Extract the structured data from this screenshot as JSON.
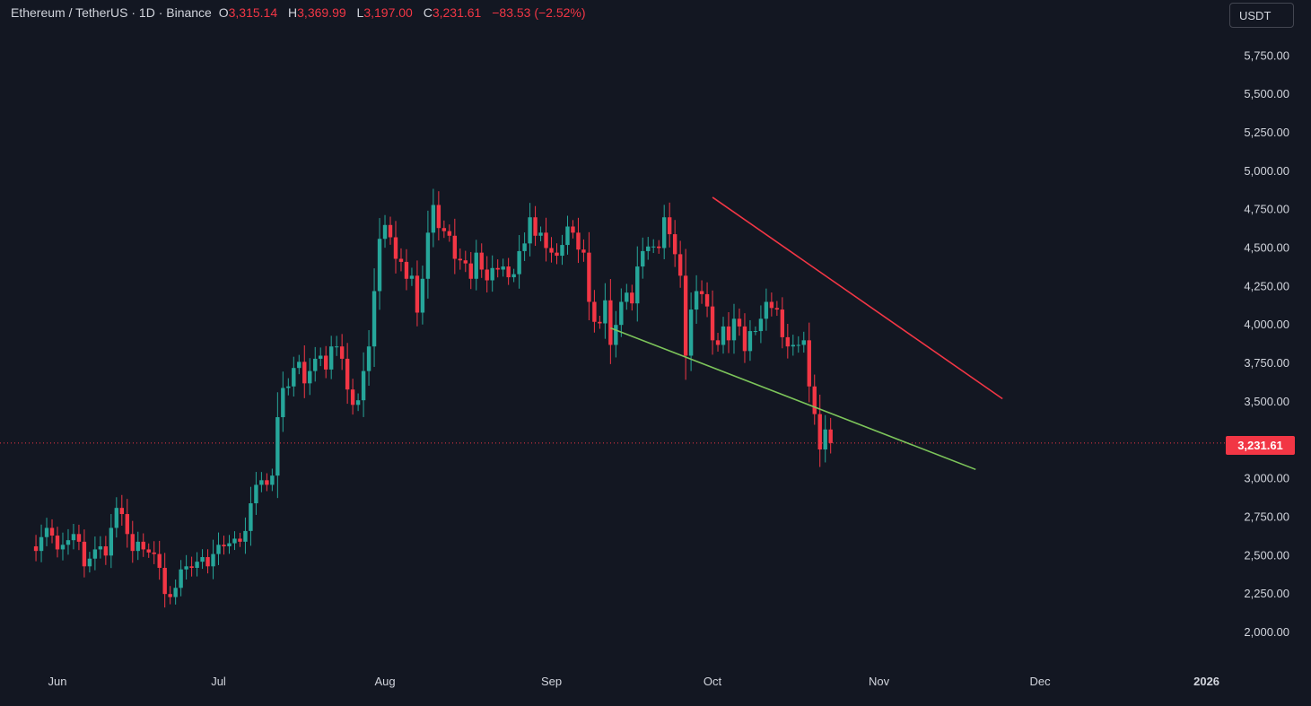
{
  "header": {
    "symbol": "Ethereum / TetherUS · 1D · Binance",
    "o_label": "O",
    "o_value": "3,315.14",
    "h_label": "H",
    "h_value": "3,369.99",
    "l_label": "L",
    "l_value": "3,197.00",
    "c_label": "C",
    "c_value": "3,231.61",
    "change": "−83.53 (−2.52%)"
  },
  "currency_button": "USDT",
  "last_price_label": "3,231.61",
  "colors": {
    "background": "#131722",
    "up": "#26a69a",
    "down": "#f23645",
    "resistance": "#f23645",
    "support": "#7cc45a",
    "axis_text": "#d1d4dc"
  },
  "chart_data": {
    "type": "candlestick",
    "title": "Ethereum / TetherUS · 1D · Binance",
    "ylim": [
      1800,
      6000
    ],
    "y_ticks": [
      2000,
      2250,
      2500,
      2750,
      3000,
      3250,
      3500,
      3750,
      4000,
      4250,
      4500,
      4750,
      5000,
      5250,
      5500,
      5750
    ],
    "y_tick_labels": [
      "2,000.00",
      "2,250.00",
      "2,500.00",
      "2,750.00",
      "3,000.00",
      "3,250.00",
      "3,500.00",
      "3,750.00",
      "4,000.00",
      "4,250.00",
      "4,500.00",
      "4,750.00",
      "5,000.00",
      "5,250.00",
      "5,500.00",
      "5,750.00"
    ],
    "x_labels": [
      {
        "label": "Jun",
        "date": "2025-06-01"
      },
      {
        "label": "Jul",
        "date": "2025-07-01"
      },
      {
        "label": "Aug",
        "date": "2025-08-01"
      },
      {
        "label": "Sep",
        "date": "2025-09-01"
      },
      {
        "label": "Oct",
        "date": "2025-10-01"
      },
      {
        "label": "Nov",
        "date": "2025-11-01"
      },
      {
        "label": "Dec",
        "date": "2025-12-01"
      },
      {
        "label": "2026",
        "date": "2026-01-01"
      }
    ],
    "last_price": 3231.61,
    "series": [
      {
        "start_date": "2025-05-27",
        "closes": [
          2560,
          2530,
          2620,
          2680,
          2630,
          2540,
          2570,
          2600,
          2640,
          2590,
          2430,
          2480,
          2540,
          2560,
          2500,
          2680,
          2810,
          2770,
          2640,
          2530,
          2590,
          2540,
          2520,
          2510,
          2420,
          2250,
          2230,
          2290,
          2410,
          2430,
          2420,
          2460,
          2490,
          2430,
          2510,
          2570,
          2560,
          2580,
          2610,
          2590,
          2660,
          2840,
          2960,
          2990,
          2960,
          3020,
          3400,
          3590,
          3600,
          3720,
          3760,
          3620,
          3700,
          3780,
          3800,
          3710,
          3860,
          3860,
          3780,
          3580,
          3480,
          3510,
          3700,
          3860,
          4220,
          4560,
          4650,
          4570,
          4430,
          4410,
          4300,
          4320,
          4080,
          4300,
          4600,
          4780,
          4630,
          4610,
          4580,
          4430,
          4420,
          4400,
          4300,
          4470,
          4360,
          4290,
          4370,
          4360,
          4380,
          4310,
          4330,
          4480,
          4530,
          4700,
          4580,
          4600,
          4500,
          4470,
          4450,
          4520,
          4640,
          4600,
          4490,
          4470,
          4150,
          4020,
          4010,
          4160,
          3870,
          4000,
          4150,
          4210,
          4140,
          4380,
          4480,
          4510,
          4510,
          4500,
          4700,
          4590,
          4460,
          4320,
          3800,
          4100,
          4220,
          4200,
          4120,
          3900,
          3870,
          3990,
          3900,
          4040,
          3990,
          3830,
          3960,
          3960,
          4040,
          4150,
          4110,
          4100,
          3920,
          3860,
          3870,
          3870,
          3900,
          3600,
          3420,
          3190,
          3320,
          3231.61
        ]
      }
    ],
    "trendlines": [
      {
        "name": "resistance",
        "from": {
          "date": "2025-10-01",
          "value": 4830
        },
        "to": {
          "date": "2025-11-24",
          "value": 3520
        }
      },
      {
        "name": "support",
        "from": {
          "date": "2025-09-12",
          "value": 3980
        },
        "to": {
          "date": "2025-11-19",
          "value": 3060
        }
      }
    ]
  }
}
